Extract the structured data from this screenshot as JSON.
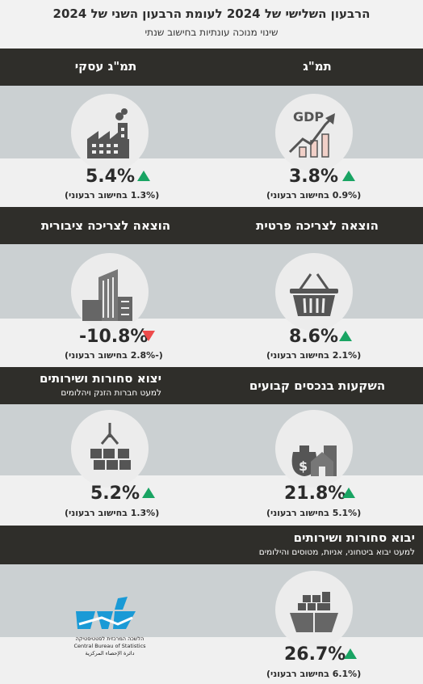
{
  "header": {
    "title": "הרבעון השלישי של 2024 לעומת הרבעון השני של 2024",
    "subtitle": "שינוי מנוכה עונתיות בחישוב שנתי"
  },
  "items": {
    "gdp": {
      "label": "תמ\"ג",
      "value": "3.8%",
      "direction": "up",
      "note": "(0.9% בחישוב רבעוני)",
      "icon": "gdp-chart-icon",
      "icon_text": "GDP"
    },
    "business_gdp": {
      "label": "תמ\"ג עסקי",
      "value": "5.4%",
      "direction": "up",
      "note": "(1.3% בחישוב רבעוני)",
      "icon": "factory-icon"
    },
    "private_consumption": {
      "label": "הוצאה לצריכה פרטית",
      "value": "8.6%",
      "direction": "up",
      "note": "(2.1% בחישוב רבעוני)",
      "icon": "shopping-basket-icon"
    },
    "public_consumption": {
      "label": "הוצאה לצריכה ציבורית",
      "value": "-10.8%",
      "direction": "down",
      "note": "(-2.8% בחישוב רבעוני)",
      "icon": "buildings-icon"
    },
    "fixed_investment": {
      "label": "השקעות בנכסים קבועים",
      "value": "21.8%",
      "direction": "up",
      "note": "(5.1% בחישוב רבעוני)",
      "icon": "money-house-icon"
    },
    "exports": {
      "label": "יצוא סחורות ושירותים",
      "sublabel": "למעט חברות הזנק ויהלומים",
      "value": "5.2%",
      "direction": "up",
      "note": "(1.3% בחישוב רבעוני)",
      "icon": "crane-boxes-icon"
    },
    "imports": {
      "label": "יבוא סחורות ושירותים",
      "sublabel": "למעט יבוא ביטחוני, אניות, מטוסים והילומים",
      "value": "26.7%",
      "direction": "up",
      "note": "(6.1% בחישוב רבעוני)",
      "icon": "cargo-ship-icon"
    }
  },
  "logo": {
    "name_he": "הלשכה המרכזית לסטטיסטיקה",
    "name_en": "Central Bureau of Statistics",
    "name_ar": "دائرة الإحصاء المركزية"
  },
  "colors": {
    "up": "#19a463",
    "down": "#ee4b4b",
    "dark_band": "#2f2e2a",
    "gray_band": "#cbd0d2",
    "logo_blue": "#1a9ad6"
  }
}
